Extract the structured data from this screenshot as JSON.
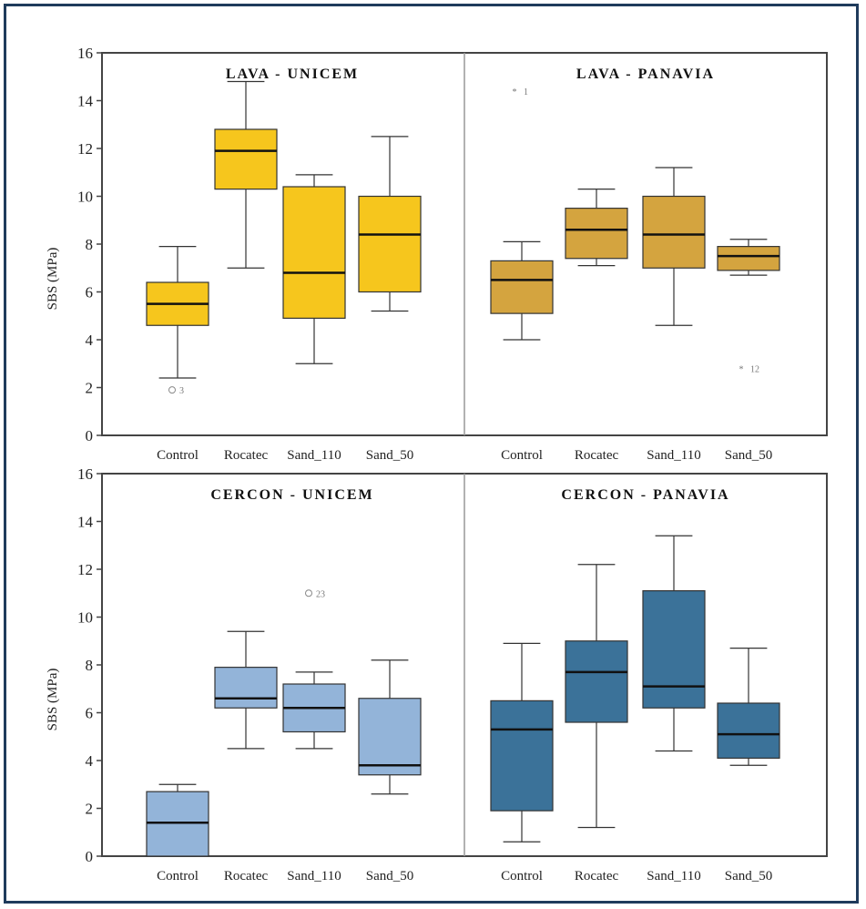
{
  "chart_data": [
    {
      "type": "boxplot",
      "ylabel": "SBS (MPa)",
      "ylim": [
        0,
        16
      ],
      "yticks": [
        "0",
        "2",
        "4",
        "6",
        "8",
        "10",
        "12",
        "14",
        "16"
      ],
      "categories": [
        "Control",
        "Rocatec",
        "Sand_110",
        "Sand_50"
      ],
      "panels": [
        {
          "title": "LAVA - UNICEM",
          "color": "#f6c61d",
          "boxes": [
            {
              "min": 2.4,
              "q1": 4.6,
              "median": 5.5,
              "q3": 6.4,
              "max": 7.9
            },
            {
              "min": 7.0,
              "q1": 10.3,
              "median": 11.9,
              "q3": 12.8,
              "max": 14.8
            },
            {
              "min": 3.0,
              "q1": 4.9,
              "median": 6.8,
              "q3": 10.4,
              "max": 10.9
            },
            {
              "min": 5.2,
              "q1": 6.0,
              "median": 8.4,
              "q3": 10.0,
              "max": 12.5
            }
          ],
          "outliers": [
            {
              "category": "Control",
              "value": 1.9,
              "label": "3",
              "symbol": "circle"
            }
          ]
        },
        {
          "title": "LAVA - PANAVIA",
          "color": "#d4a43f",
          "boxes": [
            {
              "min": 4.0,
              "q1": 5.1,
              "median": 6.5,
              "q3": 7.3,
              "max": 8.1
            },
            {
              "min": 7.1,
              "q1": 7.4,
              "median": 8.6,
              "q3": 9.5,
              "max": 10.3
            },
            {
              "min": 4.6,
              "q1": 7.0,
              "median": 8.4,
              "q3": 10.0,
              "max": 11.2
            },
            {
              "min": 6.7,
              "q1": 6.9,
              "median": 7.5,
              "q3": 7.9,
              "max": 8.2
            }
          ],
          "outliers": [
            {
              "category": "Control",
              "value": 14.4,
              "label": "1",
              "symbol": "star"
            },
            {
              "category": "Sand_50",
              "value": 2.8,
              "label": "12",
              "symbol": "star"
            }
          ]
        }
      ]
    },
    {
      "type": "boxplot",
      "ylabel": "SBS (MPa)",
      "ylim": [
        0,
        16
      ],
      "yticks": [
        "0",
        "2",
        "4",
        "6",
        "8",
        "10",
        "12",
        "14",
        "16"
      ],
      "categories": [
        "Control",
        "Rocatec",
        "Sand_110",
        "Sand_50"
      ],
      "panels": [
        {
          "title": "CERCON - UNICEM",
          "color": "#93b4d9",
          "boxes": [
            {
              "min": 0.0,
              "q1": 0.0,
              "median": 1.4,
              "q3": 2.7,
              "max": 3.0
            },
            {
              "min": 4.5,
              "q1": 6.2,
              "median": 6.6,
              "q3": 7.9,
              "max": 9.4
            },
            {
              "min": 4.5,
              "q1": 5.2,
              "median": 6.2,
              "q3": 7.2,
              "max": 7.7
            },
            {
              "min": 2.6,
              "q1": 3.4,
              "median": 3.8,
              "q3": 6.6,
              "max": 8.2
            }
          ],
          "outliers": [
            {
              "category": "Sand_110",
              "value": 11.0,
              "label": "23",
              "symbol": "circle"
            }
          ]
        },
        {
          "title": "CERCON - PANAVIA",
          "color": "#3b7299",
          "boxes": [
            {
              "min": 0.6,
              "q1": 1.9,
              "median": 5.3,
              "q3": 6.5,
              "max": 8.9
            },
            {
              "min": 1.2,
              "q1": 5.6,
              "median": 7.7,
              "q3": 9.0,
              "max": 12.2
            },
            {
              "min": 4.4,
              "q1": 6.2,
              "median": 7.1,
              "q3": 11.1,
              "max": 13.4
            },
            {
              "min": 3.8,
              "q1": 4.1,
              "median": 5.1,
              "q3": 6.4,
              "max": 8.7
            }
          ],
          "outliers": []
        }
      ]
    }
  ]
}
